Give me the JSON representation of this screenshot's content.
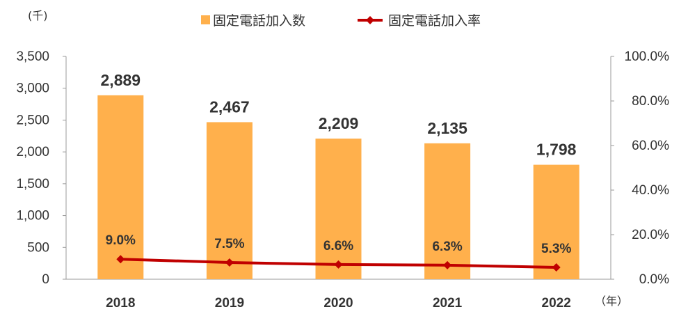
{
  "chart_data": {
    "type": "bar+line",
    "left_unit": "(千)",
    "x_unit": "（年）",
    "categories": [
      "2018",
      "2019",
      "2020",
      "2021",
      "2022"
    ],
    "series": [
      {
        "name": "固定電話加入数",
        "type": "bar",
        "axis": "left",
        "color": "#FFB04C",
        "values": [
          2889,
          2467,
          2209,
          2135,
          1798
        ],
        "labels": [
          "2,889",
          "2,467",
          "2,209",
          "2,135",
          "1,798"
        ]
      },
      {
        "name": "固定電話加入率",
        "type": "line",
        "axis": "right",
        "color": "#C00000",
        "values": [
          9.0,
          7.5,
          6.6,
          6.3,
          5.3
        ],
        "labels": [
          "9.0%",
          "7.5%",
          "6.6%",
          "6.3%",
          "5.3%"
        ]
      }
    ],
    "left_axis": {
      "min": 0,
      "max": 3500,
      "ticks": [
        0,
        500,
        1000,
        1500,
        2000,
        2500,
        3000,
        3500
      ],
      "tick_labels": [
        "0",
        "500",
        "1,000",
        "1,500",
        "2,000",
        "2,500",
        "3,000",
        "3,500"
      ]
    },
    "right_axis": {
      "min": 0,
      "max": 100,
      "ticks": [
        0,
        20,
        40,
        60,
        80,
        100
      ],
      "tick_labels": [
        "0.0%",
        "20.0%",
        "40.0%",
        "60.0%",
        "80.0%",
        "100.0%"
      ]
    },
    "grid": false,
    "legend": "top-center"
  }
}
